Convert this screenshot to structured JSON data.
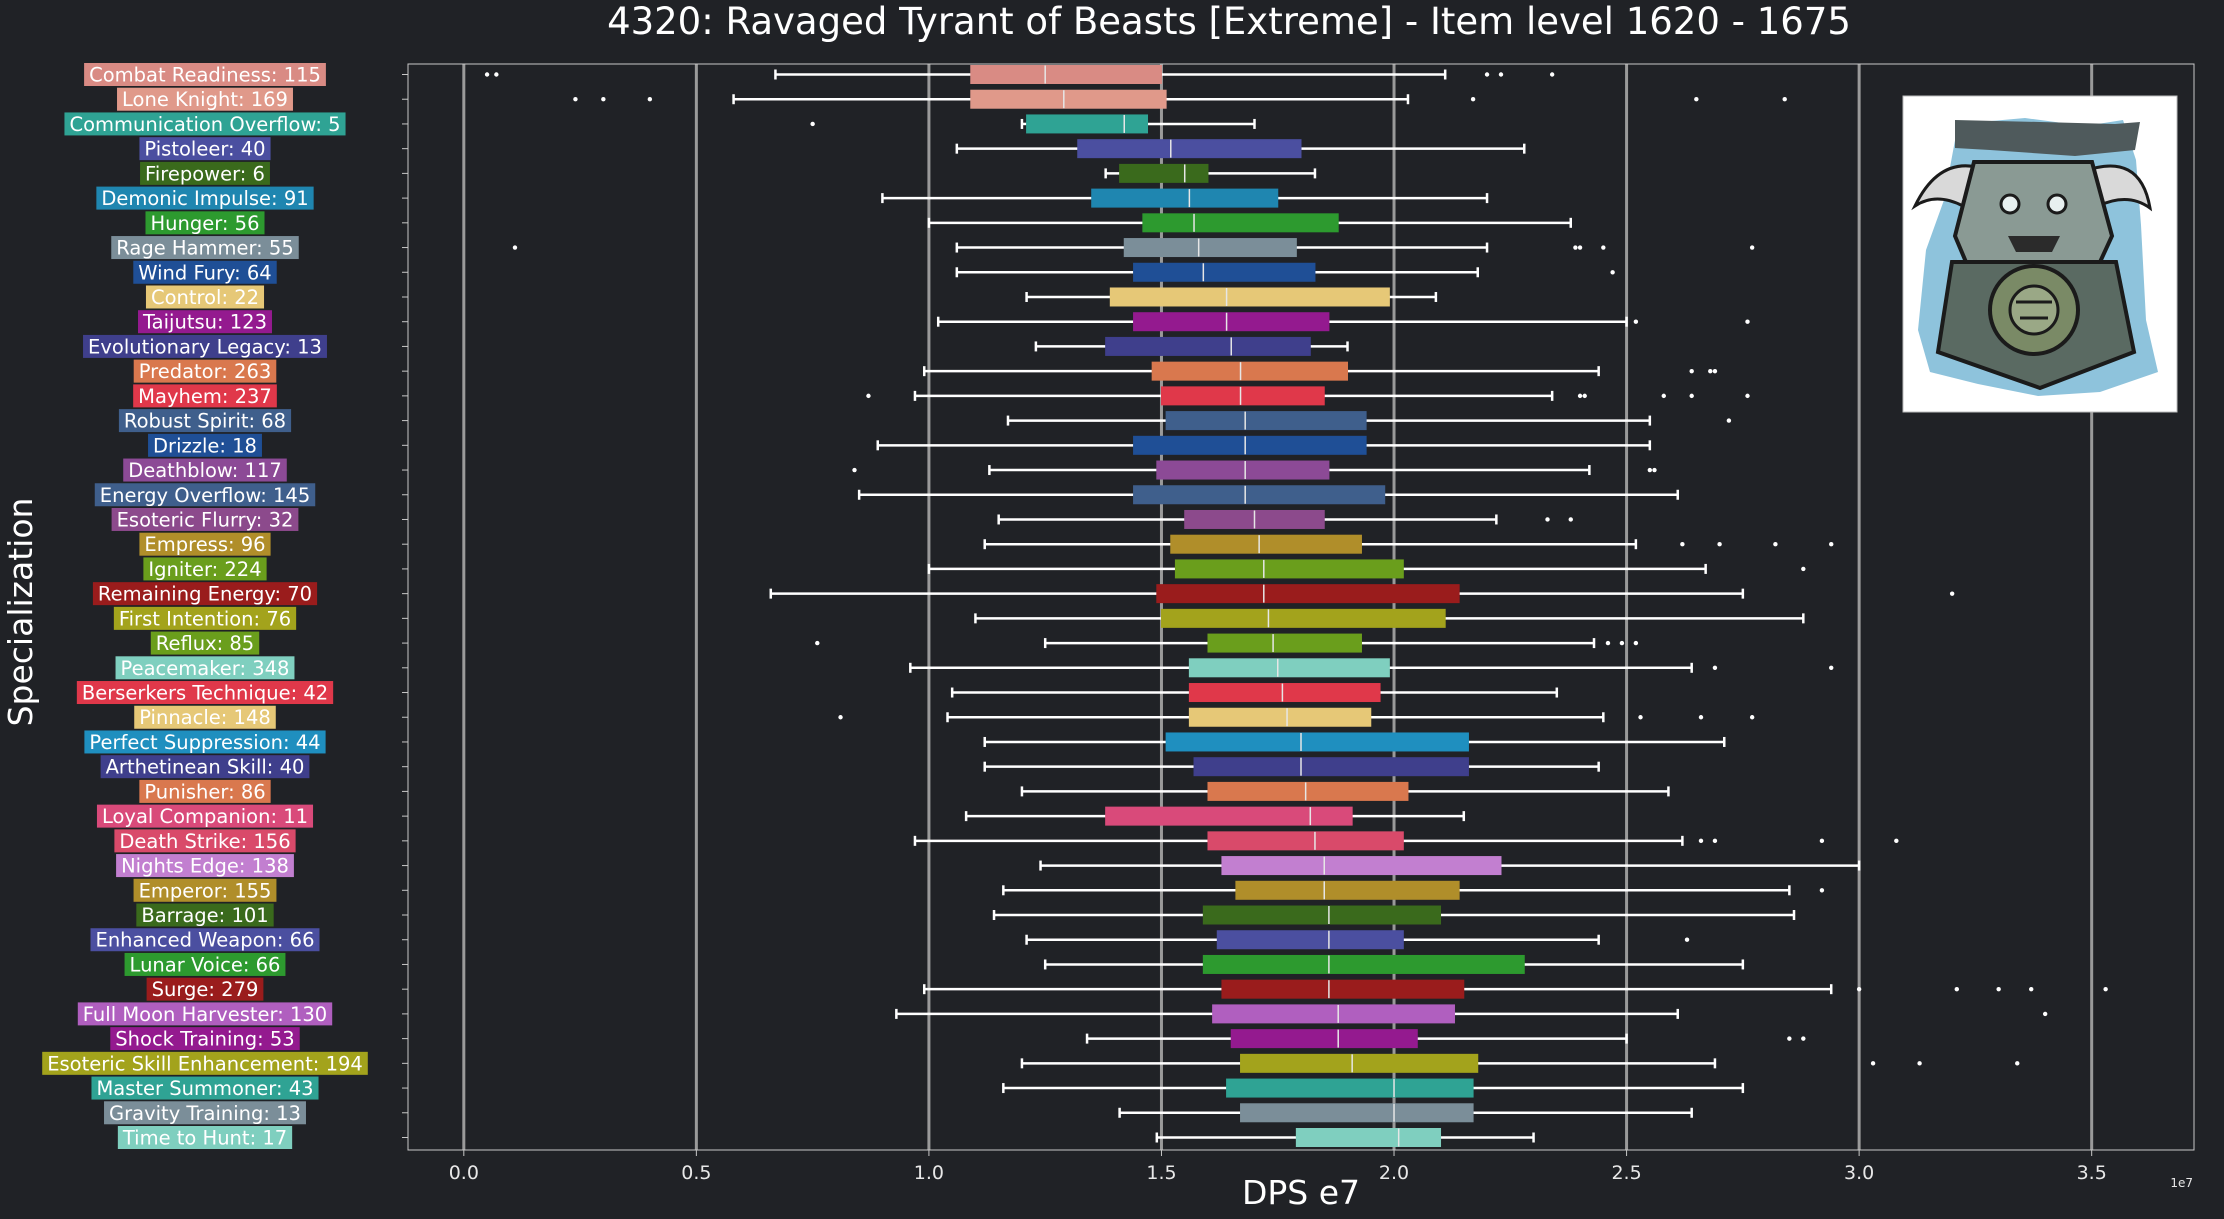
{
  "chart_data": {
    "type": "box",
    "orientation": "horizontal",
    "title": "4320: Ravaged Tyrant of Beasts [Extreme] - Item level 1620 - 1675",
    "xlabel": "DPS e7",
    "ylabel": "Specialization",
    "x_multiplier": "1e7",
    "xlim": [
      -0.12,
      3.72
    ],
    "x_ticks": [
      0.0,
      0.5,
      1.0,
      1.5,
      2.0,
      2.5,
      3.0,
      3.5
    ],
    "x_tick_labels": [
      "0.0",
      "0.5",
      "1.0",
      "1.5",
      "2.0",
      "2.5",
      "3.0",
      "3.5"
    ],
    "grid": "vertical",
    "image": "boss-portrait-icon",
    "series": [
      {
        "label": "Combat Readiness: 115",
        "color": "#d98b84",
        "whisker_low": 0.67,
        "q1": 1.09,
        "median": 1.25,
        "q3": 1.5,
        "whisker_high": 2.11,
        "outliers": [
          0.05,
          0.07,
          2.2,
          2.23,
          2.34
        ]
      },
      {
        "label": "Lone Knight: 169",
        "color": "#e0998a",
        "whisker_low": 0.58,
        "q1": 1.09,
        "median": 1.29,
        "q3": 1.51,
        "whisker_high": 2.03,
        "outliers": [
          0.24,
          0.3,
          0.4,
          2.17,
          2.65,
          2.84
        ]
      },
      {
        "label": "Communication Overflow: 5",
        "color": "#2fa394",
        "whisker_low": 1.2,
        "q1": 1.21,
        "median": 1.42,
        "q3": 1.47,
        "whisker_high": 1.7,
        "outliers": [
          0.75
        ]
      },
      {
        "label": "Pistoleer: 40",
        "color": "#4b4fa0",
        "whisker_low": 1.06,
        "q1": 1.32,
        "median": 1.52,
        "q3": 1.8,
        "whisker_high": 2.28,
        "outliers": []
      },
      {
        "label": "Firepower: 6",
        "color": "#3a6a1c",
        "whisker_low": 1.38,
        "q1": 1.41,
        "median": 1.55,
        "q3": 1.6,
        "whisker_high": 1.83,
        "outliers": []
      },
      {
        "label": "Demonic Impulse: 91",
        "color": "#1f86b0",
        "whisker_low": 0.9,
        "q1": 1.35,
        "median": 1.56,
        "q3": 1.75,
        "whisker_high": 2.2,
        "outliers": []
      },
      {
        "label": "Hunger: 56",
        "color": "#2d9a2f",
        "whisker_low": 1.0,
        "q1": 1.46,
        "median": 1.57,
        "q3": 1.88,
        "whisker_high": 2.38,
        "outliers": []
      },
      {
        "label": "Rage Hammer: 55",
        "color": "#7b8e99",
        "whisker_low": 1.06,
        "q1": 1.42,
        "median": 1.58,
        "q3": 1.79,
        "whisker_high": 2.2,
        "outliers": [
          0.11,
          2.39,
          2.4,
          2.45,
          2.77
        ]
      },
      {
        "label": "Wind Fury: 64",
        "color": "#1f4f96",
        "whisker_low": 1.06,
        "q1": 1.44,
        "median": 1.59,
        "q3": 1.83,
        "whisker_high": 2.18,
        "outliers": [
          2.47
        ]
      },
      {
        "label": "Control: 22",
        "color": "#e6c877",
        "whisker_low": 1.21,
        "q1": 1.39,
        "median": 1.64,
        "q3": 1.99,
        "whisker_high": 2.09,
        "outliers": []
      },
      {
        "label": "Taijutsu: 123",
        "color": "#941a8f",
        "whisker_low": 1.02,
        "q1": 1.44,
        "median": 1.64,
        "q3": 1.86,
        "whisker_high": 2.5,
        "outliers": [
          2.52,
          2.76
        ]
      },
      {
        "label": "Evolutionary Legacy: 13",
        "color": "#3f3f8c",
        "whisker_low": 1.23,
        "q1": 1.38,
        "median": 1.65,
        "q3": 1.82,
        "whisker_high": 1.9,
        "outliers": []
      },
      {
        "label": "Predator: 263",
        "color": "#d9784e",
        "whisker_low": 0.99,
        "q1": 1.48,
        "median": 1.67,
        "q3": 1.9,
        "whisker_high": 2.44,
        "outliers": [
          2.64,
          2.68,
          2.69
        ]
      },
      {
        "label": "Mayhem: 237",
        "color": "#e0384a",
        "whisker_low": 0.97,
        "q1": 1.5,
        "median": 1.67,
        "q3": 1.85,
        "whisker_high": 2.34,
        "outliers": [
          0.87,
          2.4,
          2.41,
          2.58,
          2.64,
          2.76
        ]
      },
      {
        "label": "Robust Spirit: 68",
        "color": "#3f5f8c",
        "whisker_low": 1.17,
        "q1": 1.51,
        "median": 1.68,
        "q3": 1.94,
        "whisker_high": 2.55,
        "outliers": [
          2.72
        ]
      },
      {
        "label": "Drizzle: 18",
        "color": "#1f4f96",
        "whisker_low": 0.89,
        "q1": 1.44,
        "median": 1.68,
        "q3": 1.94,
        "whisker_high": 2.55,
        "outliers": []
      },
      {
        "label": "Deathblow: 117",
        "color": "#8c4a96",
        "whisker_low": 1.13,
        "q1": 1.49,
        "median": 1.68,
        "q3": 1.86,
        "whisker_high": 2.42,
        "outliers": [
          0.84,
          2.55,
          2.56
        ]
      },
      {
        "label": "Energy Overflow: 145",
        "color": "#3f5f8c",
        "whisker_low": 0.85,
        "q1": 1.44,
        "median": 1.68,
        "q3": 1.98,
        "whisker_high": 2.61,
        "outliers": []
      },
      {
        "label": "Esoteric Flurry: 32",
        "color": "#8c4a8c",
        "whisker_low": 1.15,
        "q1": 1.55,
        "median": 1.7,
        "q3": 1.85,
        "whisker_high": 2.22,
        "outliers": [
          2.33,
          2.38
        ]
      },
      {
        "label": "Empress: 96",
        "color": "#b08e2a",
        "whisker_low": 1.12,
        "q1": 1.52,
        "median": 1.71,
        "q3": 1.93,
        "whisker_high": 2.52,
        "outliers": [
          2.62,
          2.7,
          2.82,
          2.94
        ]
      },
      {
        "label": "Igniter: 224",
        "color": "#6a9e1c",
        "whisker_low": 1.0,
        "q1": 1.53,
        "median": 1.72,
        "q3": 2.02,
        "whisker_high": 2.67,
        "outliers": [
          2.88
        ]
      },
      {
        "label": "Remaining Energy: 70",
        "color": "#9a1c1c",
        "whisker_low": 0.66,
        "q1": 1.49,
        "median": 1.72,
        "q3": 2.14,
        "whisker_high": 2.75,
        "outliers": [
          3.2
        ]
      },
      {
        "label": "First Intention: 76",
        "color": "#a3a31c",
        "whisker_low": 1.1,
        "q1": 1.5,
        "median": 1.73,
        "q3": 2.11,
        "whisker_high": 2.88,
        "outliers": []
      },
      {
        "label": "Reflux: 85",
        "color": "#6a9e1c",
        "whisker_low": 1.25,
        "q1": 1.6,
        "median": 1.74,
        "q3": 1.93,
        "whisker_high": 2.43,
        "outliers": [
          0.76,
          2.46,
          2.49,
          2.52
        ]
      },
      {
        "label": "Peacemaker: 348",
        "color": "#7fcfbf",
        "whisker_low": 0.96,
        "q1": 1.56,
        "median": 1.75,
        "q3": 1.99,
        "whisker_high": 2.64,
        "outliers": [
          2.69,
          2.94
        ]
      },
      {
        "label": "Berserkers Technique: 42",
        "color": "#e0384a",
        "whisker_low": 1.05,
        "q1": 1.56,
        "median": 1.76,
        "q3": 1.97,
        "whisker_high": 2.35,
        "outliers": []
      },
      {
        "label": "Pinnacle: 148",
        "color": "#e6c877",
        "whisker_low": 1.04,
        "q1": 1.56,
        "median": 1.77,
        "q3": 1.95,
        "whisker_high": 2.45,
        "outliers": [
          0.81,
          2.53,
          2.66,
          2.77
        ]
      },
      {
        "label": "Perfect Suppression: 44",
        "color": "#1f8fbf",
        "whisker_low": 1.12,
        "q1": 1.51,
        "median": 1.8,
        "q3": 2.16,
        "whisker_high": 2.71,
        "outliers": []
      },
      {
        "label": "Arthetinean Skill: 40",
        "color": "#3f3f8c",
        "whisker_low": 1.12,
        "q1": 1.57,
        "median": 1.8,
        "q3": 2.16,
        "whisker_high": 2.44,
        "outliers": []
      },
      {
        "label": "Punisher: 86",
        "color": "#d9784e",
        "whisker_low": 1.2,
        "q1": 1.6,
        "median": 1.81,
        "q3": 2.03,
        "whisker_high": 2.59,
        "outliers": []
      },
      {
        "label": "Loyal Companion: 11",
        "color": "#d94a7a",
        "whisker_low": 1.08,
        "q1": 1.38,
        "median": 1.82,
        "q3": 1.91,
        "whisker_high": 2.15,
        "outliers": []
      },
      {
        "label": "Death Strike: 156",
        "color": "#d94a6a",
        "whisker_low": 0.97,
        "q1": 1.6,
        "median": 1.83,
        "q3": 2.02,
        "whisker_high": 2.62,
        "outliers": [
          2.66,
          2.69,
          2.92,
          3.08
        ]
      },
      {
        "label": "Nights Edge: 138",
        "color": "#c27fd0",
        "whisker_low": 1.24,
        "q1": 1.63,
        "median": 1.85,
        "q3": 2.23,
        "whisker_high": 3.0,
        "outliers": []
      },
      {
        "label": "Emperor: 155",
        "color": "#b08e2a",
        "whisker_low": 1.16,
        "q1": 1.66,
        "median": 1.85,
        "q3": 2.14,
        "whisker_high": 2.85,
        "outliers": [
          2.92
        ]
      },
      {
        "label": "Barrage: 101",
        "color": "#3a6a1c",
        "whisker_low": 1.14,
        "q1": 1.59,
        "median": 1.86,
        "q3": 2.1,
        "whisker_high": 2.86,
        "outliers": []
      },
      {
        "label": "Enhanced Weapon: 66",
        "color": "#4b4fa0",
        "whisker_low": 1.21,
        "q1": 1.62,
        "median": 1.86,
        "q3": 2.02,
        "whisker_high": 2.44,
        "outliers": [
          2.63
        ]
      },
      {
        "label": "Lunar Voice: 66",
        "color": "#2d9a2f",
        "whisker_low": 1.25,
        "q1": 1.59,
        "median": 1.86,
        "q3": 2.28,
        "whisker_high": 2.75,
        "outliers": []
      },
      {
        "label": "Surge: 279",
        "color": "#9a1c1c",
        "whisker_low": 0.99,
        "q1": 1.63,
        "median": 1.86,
        "q3": 2.15,
        "whisker_high": 2.94,
        "outliers": [
          3.0,
          3.21,
          3.3,
          3.37,
          3.53
        ]
      },
      {
        "label": "Full Moon Harvester: 130",
        "color": "#b05fbf",
        "whisker_low": 0.93,
        "q1": 1.61,
        "median": 1.88,
        "q3": 2.13,
        "whisker_high": 2.61,
        "outliers": [
          3.4
        ]
      },
      {
        "label": "Shock Training: 53",
        "color": "#941a8f",
        "whisker_low": 1.34,
        "q1": 1.65,
        "median": 1.88,
        "q3": 2.05,
        "whisker_high": 2.5,
        "outliers": [
          2.85,
          2.88
        ]
      },
      {
        "label": "Esoteric Skill Enhancement: 194",
        "color": "#a3a31c",
        "whisker_low": 1.2,
        "q1": 1.67,
        "median": 1.91,
        "q3": 2.18,
        "whisker_high": 2.69,
        "outliers": [
          3.03,
          3.13,
          3.34
        ]
      },
      {
        "label": "Master Summoner: 43",
        "color": "#2fa394",
        "whisker_low": 1.16,
        "q1": 1.64,
        "median": 2.0,
        "q3": 2.17,
        "whisker_high": 2.75,
        "outliers": []
      },
      {
        "label": "Gravity Training: 13",
        "color": "#7b8e99",
        "whisker_low": 1.41,
        "q1": 1.67,
        "median": 2.0,
        "q3": 2.17,
        "whisker_high": 2.64,
        "outliers": []
      },
      {
        "label": "Time to Hunt: 17",
        "color": "#7fcfbf",
        "whisker_low": 1.49,
        "q1": 1.79,
        "median": 2.01,
        "q3": 2.1,
        "whisker_high": 2.3,
        "outliers": []
      }
    ]
  }
}
